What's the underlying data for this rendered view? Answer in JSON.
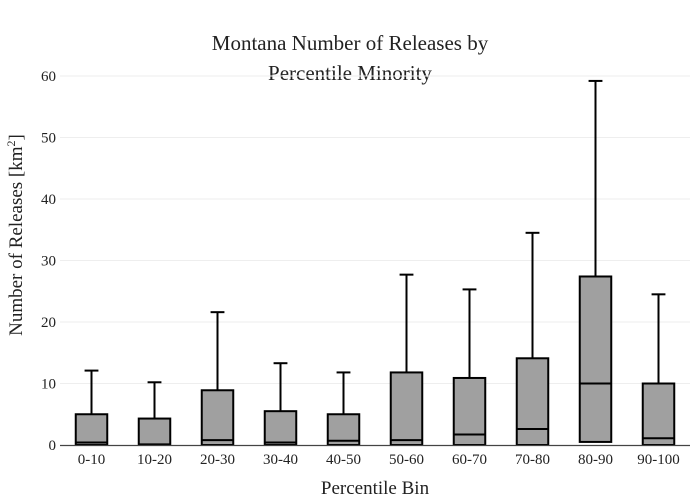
{
  "chart_data": {
    "type": "box",
    "title_lines": [
      "Montana Number of Releases by",
      "Percentile Minority"
    ],
    "xlabel": "Percentile Bin",
    "ylabel_main": "Number of Releases  [km",
    "ylabel_sup": "2",
    "ylabel_close": "]",
    "ylim": [
      0,
      60
    ],
    "yticks": [
      0,
      10,
      20,
      30,
      40,
      50,
      60
    ],
    "grid": true,
    "box_fill": "#a0a0a0",
    "line_color": "#000000",
    "categories": [
      "0-10",
      "10-20",
      "20-30",
      "30-40",
      "40-50",
      "50-60",
      "60-70",
      "70-80",
      "80-90",
      "90-100"
    ],
    "boxes": [
      {
        "min": 0,
        "q1": 0,
        "median": 0.4,
        "q3": 5.0,
        "max": 12.1
      },
      {
        "min": 0,
        "q1": 0,
        "median": 0.1,
        "q3": 4.3,
        "max": 10.2
      },
      {
        "min": 0,
        "q1": 0,
        "median": 0.8,
        "q3": 8.9,
        "max": 21.6
      },
      {
        "min": 0,
        "q1": 0,
        "median": 0.4,
        "q3": 5.5,
        "max": 13.3
      },
      {
        "min": 0,
        "q1": 0,
        "median": 0.7,
        "q3": 5.0,
        "max": 11.8
      },
      {
        "min": 0,
        "q1": 0,
        "median": 0.8,
        "q3": 11.8,
        "max": 27.7
      },
      {
        "min": 0,
        "q1": 0,
        "median": 1.7,
        "q3": 10.9,
        "max": 25.3
      },
      {
        "min": 0,
        "q1": 0,
        "median": 2.6,
        "q3": 14.1,
        "max": 34.5
      },
      {
        "min": 0.5,
        "q1": 0.5,
        "median": 10.0,
        "q3": 27.4,
        "max": 59.2
      },
      {
        "min": 0,
        "q1": 0,
        "median": 1.1,
        "q3": 10.0,
        "max": 24.5
      }
    ]
  }
}
